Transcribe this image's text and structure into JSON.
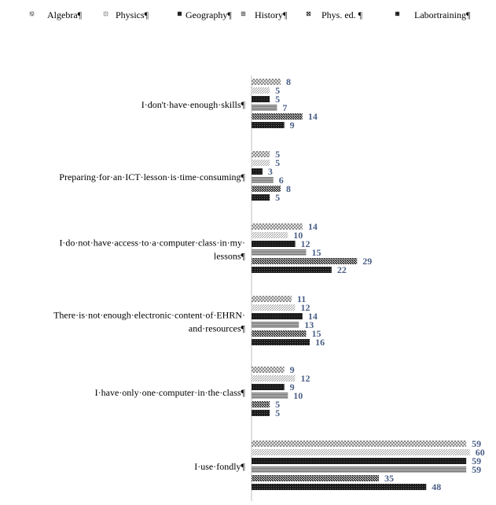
{
  "chart_data": {
    "type": "bar",
    "orientation": "horizontal",
    "legend_placement": "top",
    "grid": false,
    "xlim": [
      0,
      62
    ],
    "categories": [
      "I don't have enough skills¶",
      "Preparing for an ICT lesson is time consuming¶",
      "I do not have access to a computer class in my lessons¶",
      "There is not enough electronic content of EHRN and resources¶",
      "I have only one computer in the class¶",
      "I use fondly¶"
    ],
    "category_lines": [
      [
        "I·don't·have·enough·skills¶"
      ],
      [
        "Preparing·for·an·ICT·lesson·is·time·consuming¶"
      ],
      [
        "I·do·not·have·access·to·a·computer·class·in·my·",
        "lessons¶"
      ],
      [
        "There·is·not·enough·electronic·content·of·EHRN·",
        "and·resources¶"
      ],
      [
        "I·have·only·one·computer·in·the·class¶"
      ],
      [
        "I·use·fondly¶"
      ]
    ],
    "series": [
      {
        "name": "Algebra¶",
        "values": [
          8,
          5,
          14,
          11,
          9,
          59
        ]
      },
      {
        "name": "Physics¶",
        "values": [
          5,
          5,
          10,
          12,
          12,
          60
        ]
      },
      {
        "name": "Geography¶",
        "values": [
          5,
          3,
          12,
          14,
          9,
          59
        ]
      },
      {
        "name": "History¶",
        "values": [
          7,
          6,
          15,
          13,
          10,
          59
        ]
      },
      {
        "name": "Phys. ed. ¶",
        "values": [
          14,
          8,
          29,
          15,
          5,
          35
        ]
      },
      {
        "name": "Labortraining¶",
        "values": [
          9,
          5,
          22,
          16,
          5,
          48
        ]
      }
    ],
    "colors": {
      "label_text": "#4a5f86",
      "category_text": "#000000",
      "axis": "#bfbfbf"
    }
  }
}
